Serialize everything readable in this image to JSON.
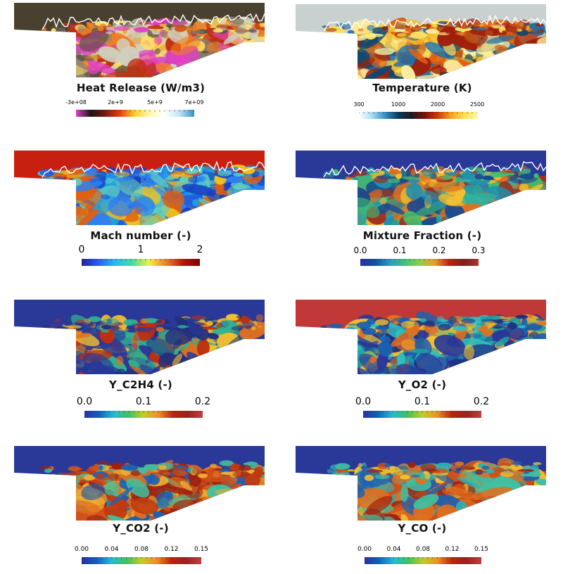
{
  "panels": [
    {
      "id": "heat-release",
      "title": "Heat Release (W/m3)",
      "ticks": [
        "-3e+08",
        "2e+9",
        "5e+9",
        "7e+09"
      ],
      "colormap": [
        "#e040c8",
        "#1a1410",
        "#7a1a10",
        "#e84010",
        "#ffd030",
        "#fff8b0",
        "#ffffff",
        "#c0e4f4",
        "#3090d0"
      ],
      "background": "#4a4030",
      "cavity_colors": [
        "#8a8070",
        "#d0d0c0",
        "#c03010",
        "#f08020",
        "#ffe060",
        "#e040c0",
        "#5a5040"
      ]
    },
    {
      "id": "temperature",
      "title": "Temperature (K)",
      "ticks": [
        "300",
        "1000",
        "2000",
        "2500"
      ],
      "colormap": [
        "#ffffff",
        "#a8dcf0",
        "#3090c8",
        "#0b3a5e",
        "#1a1a1a",
        "#7a1008",
        "#d03808",
        "#f8a020",
        "#ffe050",
        "#fff8a0"
      ],
      "background": "#c8d0d0",
      "cavity_colors": [
        "#f0c030",
        "#ffe060",
        "#e06010",
        "#a02008",
        "#104870",
        "#2070a8",
        "#fff0a0"
      ]
    },
    {
      "id": "mach-number",
      "title": "Mach number (-)",
      "ticks": [
        "0",
        "1",
        "2"
      ],
      "colormap": [
        "#2020a0",
        "#2060ff",
        "#20c0f0",
        "#40e0a0",
        "#f0f040",
        "#f08020",
        "#c01010",
        "#800000"
      ],
      "background": "#c82010",
      "cavity_colors": [
        "#1840c0",
        "#2060e0",
        "#3080f0",
        "#20a0e0",
        "#60d0c0",
        "#f0c020",
        "#e06010"
      ]
    },
    {
      "id": "mixture-fraction",
      "title": "Mixture Fraction (-)",
      "ticks": [
        "0.0",
        "0.1",
        "0.2",
        "0.3"
      ],
      "colormap": [
        "#2a30a0",
        "#1050a0",
        "#20a0c0",
        "#40c080",
        "#90d040",
        "#f0a020",
        "#c02010",
        "#802020",
        "#b03030"
      ],
      "background": "#2a3898",
      "cavity_colors": [
        "#a03020",
        "#e07020",
        "#f0c030",
        "#30b0a0",
        "#2090b0",
        "#1a4a90",
        "#40c070"
      ]
    },
    {
      "id": "y-c2h4",
      "title": "Y_C2H4 (-)",
      "ticks": [
        "0.0",
        "0.1",
        "0.2"
      ],
      "colormap": [
        "#2a30a0",
        "#1060c0",
        "#20c0d0",
        "#40c060",
        "#c0d020",
        "#f09020",
        "#c02010",
        "#a02020",
        "#c04040"
      ],
      "background": "#2a3898",
      "cavity_colors": [
        "#2a3898",
        "#c03010",
        "#f0c030",
        "#30b090",
        "#e07020",
        "#2a3898",
        "#203080"
      ]
    },
    {
      "id": "y-o2",
      "title": "Y_O2 (-)",
      "ticks": [
        "0.0",
        "0.1",
        "0.2"
      ],
      "colormap": [
        "#2a30a0",
        "#1060c0",
        "#20c0d0",
        "#40c060",
        "#c0d020",
        "#f09020",
        "#c02010",
        "#a02020",
        "#c04040"
      ],
      "background": "#c03838",
      "cavity_colors": [
        "#2a3898",
        "#30c0c0",
        "#1a60b0",
        "#f0c030",
        "#e07020",
        "#20a0a0",
        "#203080"
      ]
    },
    {
      "id": "y-co2",
      "title": "Y_CO2 (-)",
      "ticks": [
        "0.00",
        "0.04",
        "0.08",
        "0.12",
        "0.15"
      ],
      "colormap": [
        "#2a30a0",
        "#1060c0",
        "#20c0d0",
        "#40c060",
        "#c0d020",
        "#f09020",
        "#c02010",
        "#a02020",
        "#c04040"
      ],
      "background": "#2a3898",
      "cavity_colors": [
        "#d05018",
        "#a02010",
        "#e07020",
        "#f0b030",
        "#40c0a0",
        "#2060b0",
        "#c03a10"
      ]
    },
    {
      "id": "y-co",
      "title": "Y_CO (-)",
      "ticks": [
        "0.00",
        "0.04",
        "0.08",
        "0.12",
        "0.15"
      ],
      "colormap": [
        "#2a30a0",
        "#1060c0",
        "#20c0d0",
        "#40c060",
        "#c0d020",
        "#f09020",
        "#c02010",
        "#a02020",
        "#c04040"
      ],
      "background": "#2a3898",
      "cavity_colors": [
        "#d05018",
        "#a02010",
        "#f0c030",
        "#40c0a0",
        "#30b0b0",
        "#e07020",
        "#2060b0"
      ]
    }
  ]
}
